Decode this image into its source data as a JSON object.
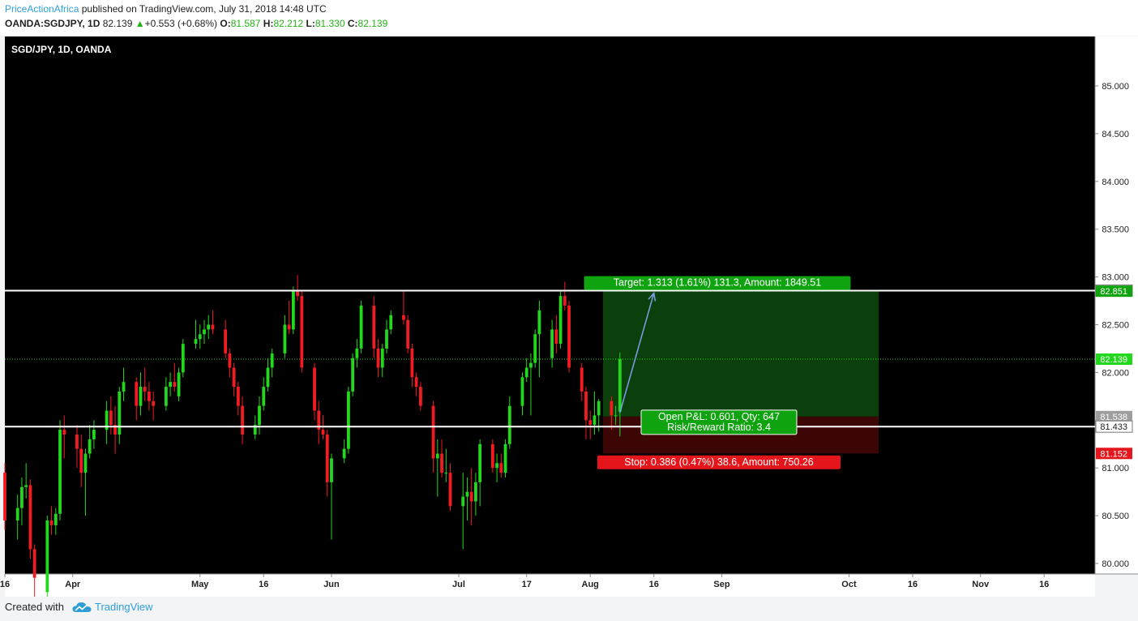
{
  "header": {
    "author": "PriceActionAfrica",
    "published": "published on TradingView.com, July 31, 2018 14:48 UTC",
    "symbol": "OANDA:SGDJPY, 1D",
    "last": "82.139",
    "change_arrow": "▲",
    "change": "+0.553 (+0.68%)",
    "open_label": "O:",
    "open": "81.587",
    "high_label": "H:",
    "high": "82.212",
    "low_label": "L:",
    "low": "81.330",
    "close_label": "C:",
    "close": "82.139"
  },
  "footer": {
    "created_with": "Created with",
    "brand": "TradingView",
    "logo_icon": "tradingview-cloud-icon"
  },
  "colors": {
    "up": "#22d81c",
    "down": "#f21b21",
    "background": "#000000",
    "target_zone": "#0b3f0b",
    "stop_zone": "#3d0606",
    "target_label": "#0fa30f",
    "stop_label": "#e5161b",
    "link_blue": "#2f9ed8"
  },
  "chart_data": {
    "type": "candlestick",
    "title": "SGD/JPY, 1D, OANDA",
    "ylim": [
      79.6,
      85.3
    ],
    "y_ticks": [
      "80.000",
      "80.500",
      "81.000",
      "81.500",
      "82.000",
      "82.500",
      "83.000",
      "83.500",
      "84.000",
      "84.500",
      "85.000"
    ],
    "y_tick_values": [
      80.0,
      80.5,
      81.0,
      81.5,
      82.0,
      82.5,
      83.0,
      83.5,
      84.0,
      84.5,
      85.0
    ],
    "x_range": [
      "2018-03-16",
      "2018-11-28"
    ],
    "x_tick_labels": [
      "16",
      "Apr",
      "May",
      "16",
      "Jun",
      "Jul",
      "17",
      "Aug",
      "16",
      "Sep",
      "Oct",
      "16",
      "Nov",
      "16"
    ],
    "x_tick_dates": [
      "2018-03-16",
      "2018-04-01",
      "2018-05-01",
      "2018-05-16",
      "2018-06-01",
      "2018-07-01",
      "2018-07-17",
      "2018-08-01",
      "2018-08-16",
      "2018-09-01",
      "2018-10-01",
      "2018-10-16",
      "2018-11-01",
      "2018-11-16"
    ],
    "series": [
      {
        "values": [
          {
            "d": "2018-03-15",
            "o": 81.05,
            "h": 81.15,
            "l": 80.78,
            "c": 80.95
          },
          {
            "d": "2018-03-16",
            "o": 80.95,
            "h": 81.05,
            "l": 80.35,
            "c": 80.45
          },
          {
            "d": "2018-03-19",
            "o": 80.45,
            "h": 80.72,
            "l": 80.25,
            "c": 80.58
          },
          {
            "d": "2018-03-20",
            "o": 80.58,
            "h": 80.9,
            "l": 80.4,
            "c": 80.8
          },
          {
            "d": "2018-03-21",
            "o": 80.8,
            "h": 81.05,
            "l": 80.68,
            "c": 80.82
          },
          {
            "d": "2018-03-22",
            "o": 80.82,
            "h": 80.88,
            "l": 80.05,
            "c": 80.15
          },
          {
            "d": "2018-03-23",
            "o": 80.15,
            "h": 80.2,
            "l": 79.6,
            "c": 79.85
          },
          {
            "d": "2018-03-26",
            "o": 79.7,
            "h": 80.5,
            "l": 79.6,
            "c": 80.45
          },
          {
            "d": "2018-03-27",
            "o": 80.45,
            "h": 80.6,
            "l": 80.3,
            "c": 80.4
          },
          {
            "d": "2018-03-28",
            "o": 80.4,
            "h": 80.58,
            "l": 80.3,
            "c": 80.52
          },
          {
            "d": "2018-03-29",
            "o": 80.52,
            "h": 81.5,
            "l": 80.45,
            "c": 81.4
          },
          {
            "d": "2018-03-30",
            "o": 81.4,
            "h": 81.55,
            "l": 81.1,
            "c": 81.35
          },
          {
            "d": "2018-04-02",
            "o": 81.35,
            "h": 81.45,
            "l": 81.0,
            "c": 81.2
          },
          {
            "d": "2018-04-03",
            "o": 81.2,
            "h": 81.35,
            "l": 80.8,
            "c": 80.95
          },
          {
            "d": "2018-04-04",
            "o": 80.95,
            "h": 81.2,
            "l": 80.5,
            "c": 81.15
          },
          {
            "d": "2018-04-05",
            "o": 81.15,
            "h": 81.45,
            "l": 81.1,
            "c": 81.3
          },
          {
            "d": "2018-04-06",
            "o": 81.3,
            "h": 81.5,
            "l": 81.2,
            "c": 81.4
          },
          {
            "d": "2018-04-09",
            "o": 81.4,
            "h": 81.7,
            "l": 81.25,
            "c": 81.6
          },
          {
            "d": "2018-04-10",
            "o": 81.6,
            "h": 81.75,
            "l": 81.35,
            "c": 81.45
          },
          {
            "d": "2018-04-11",
            "o": 81.45,
            "h": 81.65,
            "l": 81.15,
            "c": 81.35
          },
          {
            "d": "2018-04-12",
            "o": 81.35,
            "h": 81.85,
            "l": 81.25,
            "c": 81.8
          },
          {
            "d": "2018-04-13",
            "o": 81.8,
            "h": 82.05,
            "l": 81.7,
            "c": 81.9
          },
          {
            "d": "2018-04-16",
            "o": 81.9,
            "h": 81.95,
            "l": 81.5,
            "c": 81.65
          },
          {
            "d": "2018-04-17",
            "o": 81.65,
            "h": 82.0,
            "l": 81.55,
            "c": 81.85
          },
          {
            "d": "2018-04-18",
            "o": 81.85,
            "h": 82.05,
            "l": 81.7,
            "c": 81.8
          },
          {
            "d": "2018-04-19",
            "o": 81.8,
            "h": 81.9,
            "l": 81.6,
            "c": 81.7
          },
          {
            "d": "2018-04-20",
            "o": 81.7,
            "h": 81.8,
            "l": 81.5,
            "c": 81.65
          },
          {
            "d": "2018-04-23",
            "o": 81.65,
            "h": 81.95,
            "l": 81.6,
            "c": 81.85
          },
          {
            "d": "2018-04-24",
            "o": 81.85,
            "h": 82.0,
            "l": 81.75,
            "c": 81.9
          },
          {
            "d": "2018-04-25",
            "o": 81.9,
            "h": 82.1,
            "l": 81.8,
            "c": 81.85
          },
          {
            "d": "2018-04-26",
            "o": 81.75,
            "h": 82.05,
            "l": 81.7,
            "c": 82.0
          },
          {
            "d": "2018-04-27",
            "o": 82.0,
            "h": 82.35,
            "l": 81.95,
            "c": 82.3
          },
          {
            "d": "2018-04-30",
            "o": 82.3,
            "h": 82.55,
            "l": 82.25,
            "c": 82.35
          },
          {
            "d": "2018-05-01",
            "o": 82.35,
            "h": 82.5,
            "l": 82.25,
            "c": 82.4
          },
          {
            "d": "2018-05-02",
            "o": 82.4,
            "h": 82.55,
            "l": 82.3,
            "c": 82.45
          },
          {
            "d": "2018-05-03",
            "o": 82.45,
            "h": 82.6,
            "l": 82.35,
            "c": 82.5
          },
          {
            "d": "2018-05-04",
            "o": 82.5,
            "h": 82.65,
            "l": 82.4,
            "c": 82.45
          },
          {
            "d": "2018-05-07",
            "o": 82.45,
            "h": 82.55,
            "l": 82.15,
            "c": 82.2
          },
          {
            "d": "2018-05-08",
            "o": 82.2,
            "h": 82.25,
            "l": 81.95,
            "c": 82.05
          },
          {
            "d": "2018-05-09",
            "o": 82.05,
            "h": 82.1,
            "l": 81.75,
            "c": 81.85
          },
          {
            "d": "2018-05-10",
            "o": 81.85,
            "h": 81.9,
            "l": 81.55,
            "c": 81.65
          },
          {
            "d": "2018-05-11",
            "o": 81.65,
            "h": 81.75,
            "l": 81.25,
            "c": 81.35
          },
          {
            "d": "2018-05-14",
            "o": 81.35,
            "h": 81.55,
            "l": 81.3,
            "c": 81.45
          },
          {
            "d": "2018-05-15",
            "o": 81.45,
            "h": 81.75,
            "l": 81.35,
            "c": 81.65
          },
          {
            "d": "2018-05-16",
            "o": 81.65,
            "h": 81.95,
            "l": 81.6,
            "c": 81.85
          },
          {
            "d": "2018-05-17",
            "o": 81.85,
            "h": 82.15,
            "l": 81.8,
            "c": 82.05
          },
          {
            "d": "2018-05-18",
            "o": 82.05,
            "h": 82.25,
            "l": 81.95,
            "c": 82.2
          },
          {
            "d": "2018-05-21",
            "o": 82.2,
            "h": 82.6,
            "l": 82.15,
            "c": 82.5
          },
          {
            "d": "2018-05-22",
            "o": 82.5,
            "h": 82.75,
            "l": 82.4,
            "c": 82.45
          },
          {
            "d": "2018-05-23",
            "o": 82.45,
            "h": 82.9,
            "l": 82.4,
            "c": 82.85
          },
          {
            "d": "2018-05-24",
            "o": 82.85,
            "h": 83.02,
            "l": 82.75,
            "c": 82.8
          },
          {
            "d": "2018-05-25",
            "o": 82.8,
            "h": 82.85,
            "l": 82.0,
            "c": 82.05
          },
          {
            "d": "2018-05-28",
            "o": 82.05,
            "h": 82.1,
            "l": 81.5,
            "c": 81.6
          },
          {
            "d": "2018-05-29",
            "o": 81.6,
            "h": 81.7,
            "l": 81.25,
            "c": 81.4
          },
          {
            "d": "2018-05-30",
            "o": 81.4,
            "h": 81.55,
            "l": 81.3,
            "c": 81.35
          },
          {
            "d": "2018-05-31",
            "o": 81.35,
            "h": 81.4,
            "l": 80.7,
            "c": 80.85
          },
          {
            "d": "2018-06-01",
            "o": 80.85,
            "h": 81.15,
            "l": 80.25,
            "c": 81.1
          },
          {
            "d": "2018-06-04",
            "o": 81.1,
            "h": 81.3,
            "l": 81.05,
            "c": 81.2
          },
          {
            "d": "2018-06-05",
            "o": 81.2,
            "h": 81.85,
            "l": 81.15,
            "c": 81.8
          },
          {
            "d": "2018-06-06",
            "o": 81.8,
            "h": 82.2,
            "l": 81.75,
            "c": 82.15
          },
          {
            "d": "2018-06-07",
            "o": 82.15,
            "h": 82.35,
            "l": 82.05,
            "c": 82.25
          },
          {
            "d": "2018-06-08",
            "o": 82.25,
            "h": 82.75,
            "l": 82.2,
            "c": 82.7
          },
          {
            "d": "2018-06-11",
            "o": 82.7,
            "h": 82.8,
            "l": 82.15,
            "c": 82.25
          },
          {
            "d": "2018-06-12",
            "o": 82.25,
            "h": 82.35,
            "l": 81.95,
            "c": 82.05
          },
          {
            "d": "2018-06-13",
            "o": 82.05,
            "h": 82.3,
            "l": 81.95,
            "c": 82.25
          },
          {
            "d": "2018-06-14",
            "o": 82.25,
            "h": 82.55,
            "l": 82.2,
            "c": 82.45
          },
          {
            "d": "2018-06-15",
            "o": 82.45,
            "h": 82.65,
            "l": 82.4,
            "c": 82.6
          },
          {
            "d": "2018-06-18",
            "o": 82.6,
            "h": 82.85,
            "l": 82.5,
            "c": 82.55
          },
          {
            "d": "2018-06-19",
            "o": 82.55,
            "h": 82.6,
            "l": 82.2,
            "c": 82.25
          },
          {
            "d": "2018-06-20",
            "o": 82.25,
            "h": 82.3,
            "l": 81.85,
            "c": 81.95
          },
          {
            "d": "2018-06-21",
            "o": 81.95,
            "h": 82.0,
            "l": 81.75,
            "c": 81.85
          },
          {
            "d": "2018-06-22",
            "o": 81.85,
            "h": 81.9,
            "l": 81.6,
            "c": 81.65
          },
          {
            "d": "2018-06-25",
            "o": 81.65,
            "h": 81.7,
            "l": 80.95,
            "c": 81.1
          },
          {
            "d": "2018-06-26",
            "o": 81.1,
            "h": 81.3,
            "l": 80.7,
            "c": 81.15
          },
          {
            "d": "2018-06-27",
            "o": 81.15,
            "h": 81.3,
            "l": 80.9,
            "c": 80.95
          },
          {
            "d": "2018-06-28",
            "o": 80.95,
            "h": 81.2,
            "l": 80.85,
            "c": 80.95
          },
          {
            "d": "2018-06-29",
            "o": 80.95,
            "h": 81.05,
            "l": 80.55,
            "c": 80.6
          },
          {
            "d": "2018-07-02",
            "o": 80.6,
            "h": 80.95,
            "l": 80.15,
            "c": 80.7
          },
          {
            "d": "2018-07-03",
            "o": 80.7,
            "h": 80.9,
            "l": 80.45,
            "c": 80.75
          },
          {
            "d": "2018-07-04",
            "o": 80.75,
            "h": 81.0,
            "l": 80.4,
            "c": 80.65
          },
          {
            "d": "2018-07-05",
            "o": 80.65,
            "h": 80.95,
            "l": 80.5,
            "c": 80.85
          },
          {
            "d": "2018-07-06",
            "o": 80.85,
            "h": 81.3,
            "l": 80.6,
            "c": 81.25
          },
          {
            "d": "2018-07-09",
            "o": 81.25,
            "h": 81.3,
            "l": 80.95,
            "c": 81.0
          },
          {
            "d": "2018-07-10",
            "o": 81.0,
            "h": 81.15,
            "l": 80.85,
            "c": 81.05
          },
          {
            "d": "2018-07-11",
            "o": 81.05,
            "h": 81.15,
            "l": 80.9,
            "c": 80.95
          },
          {
            "d": "2018-07-12",
            "o": 80.95,
            "h": 81.3,
            "l": 80.9,
            "c": 81.25
          },
          {
            "d": "2018-07-13",
            "o": 81.25,
            "h": 81.75,
            "l": 81.2,
            "c": 81.65
          },
          {
            "d": "2018-07-16",
            "o": 81.65,
            "h": 82.0,
            "l": 81.55,
            "c": 81.95
          },
          {
            "d": "2018-07-17",
            "o": 81.95,
            "h": 82.15,
            "l": 81.9,
            "c": 82.05
          },
          {
            "d": "2018-07-18",
            "o": 82.05,
            "h": 82.2,
            "l": 81.55,
            "c": 82.1
          },
          {
            "d": "2018-07-19",
            "o": 82.1,
            "h": 82.45,
            "l": 82.05,
            "c": 82.4
          },
          {
            "d": "2018-07-20",
            "o": 82.4,
            "h": 82.75,
            "l": 81.95,
            "c": 82.65
          },
          {
            "d": "2018-07-23",
            "o": 82.15,
            "h": 82.55,
            "l": 82.05,
            "c": 82.45
          },
          {
            "d": "2018-07-24",
            "o": 82.45,
            "h": 82.6,
            "l": 82.2,
            "c": 82.3
          },
          {
            "d": "2018-07-25",
            "o": 82.3,
            "h": 82.85,
            "l": 82.25,
            "c": 82.8
          },
          {
            "d": "2018-07-26",
            "o": 82.8,
            "h": 82.95,
            "l": 82.65,
            "c": 82.7
          },
          {
            "d": "2018-07-27",
            "o": 82.7,
            "h": 82.75,
            "l": 82.0,
            "c": 82.05
          },
          {
            "d": "2018-07-30",
            "o": 82.05,
            "h": 82.1,
            "l": 81.7,
            "c": 81.8
          },
          {
            "d": "2018-07-31",
            "o": 81.8,
            "h": 81.85,
            "l": 81.3,
            "c": 81.5
          },
          {
            "d": "2018-08-01",
            "o": 81.5,
            "h": 81.6,
            "l": 81.3,
            "c": 81.45
          },
          {
            "d": "2018-08-02",
            "o": 81.45,
            "h": 81.8,
            "l": 81.35,
            "c": 81.55
          },
          {
            "d": "2018-08-03",
            "o": 81.55,
            "h": 81.72,
            "l": 81.38,
            "c": 81.7
          },
          {
            "d": "2018-08-06",
            "o": 81.7,
            "h": 81.75,
            "l": 81.4,
            "c": 81.55
          },
          {
            "d": "2018-08-07",
            "o": 81.55,
            "h": 81.65,
            "l": 81.45,
            "c": 81.55
          },
          {
            "d": "2018-08-08",
            "o": 81.59,
            "h": 82.21,
            "l": 81.33,
            "c": 82.14
          }
        ]
      }
    ],
    "levels": [
      {
        "value": 82.857,
        "label": "82.857",
        "style": "white-line"
      },
      {
        "value": 81.433,
        "label": "81.433",
        "style": "white-line"
      }
    ],
    "price_badges": [
      {
        "value": 82.857,
        "label": "82.857",
        "kind": "level"
      },
      {
        "value": 82.851,
        "label": "82.851",
        "kind": "target"
      },
      {
        "value": 82.139,
        "label": "82.139",
        "kind": "last"
      },
      {
        "value": 81.538,
        "label": "81.538",
        "kind": "entry"
      },
      {
        "value": 81.433,
        "label": "81.433",
        "kind": "level"
      },
      {
        "value": 81.152,
        "label": "81.152",
        "kind": "stop"
      }
    ],
    "position": {
      "start_date": "2018-08-04",
      "end_date": "2018-10-08",
      "entry": 81.538,
      "target": 82.851,
      "stop": 81.152,
      "current": 82.139,
      "target_label": "Target: 1.313 (1.61%) 131.3, Amount: 1849.51",
      "stop_label": "Stop: 0.386 (0.47%) 38.6, Amount: 750.26",
      "pnl_label": "Open P&L: 0.601, Qty: 647",
      "rr_label": "Risk/Reward Ratio: 3.4"
    },
    "projection": {
      "from_date": "2018-08-08",
      "from_value": 81.58,
      "to_date": "2018-08-16",
      "to_value": 82.83
    }
  }
}
